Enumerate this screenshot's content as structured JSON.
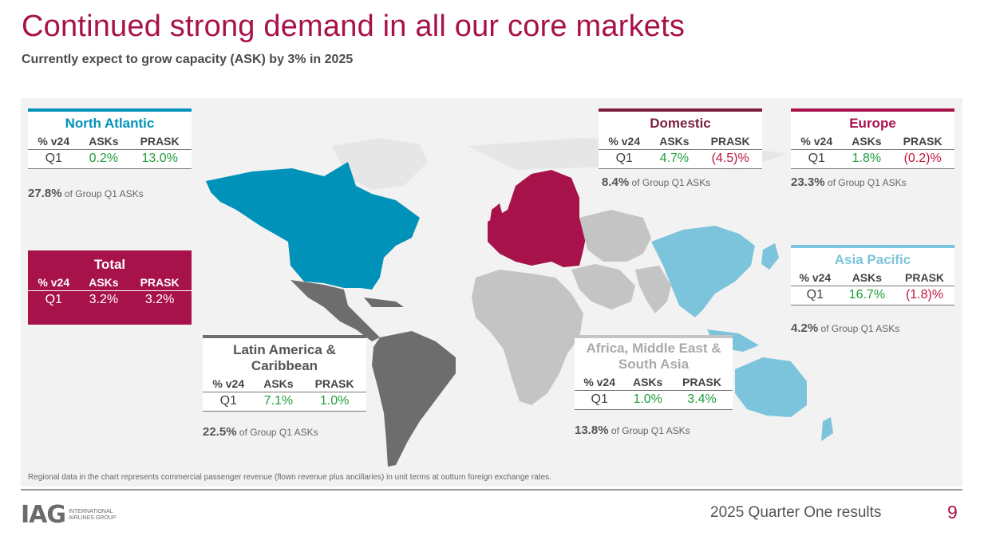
{
  "header": {
    "title": "Continued strong demand in all our core markets",
    "subtitle": "Currently expect to grow capacity (ASK) by 3% in 2025"
  },
  "colors": {
    "accent": "#a8124a",
    "north_atlantic": "#0092b8",
    "asia_pacific": "#7cc4dc",
    "latin_america": "#6d6d6d",
    "africa_me_sa": "#c4c4c4",
    "europe": "#a8124a",
    "positive": "#1f9e3a",
    "negative": "#c0143c"
  },
  "columns": {
    "period": "% v24",
    "asks": "ASKs",
    "prask": "PRASK"
  },
  "regions": {
    "north_atlantic": {
      "name": "North Atlantic",
      "period": "Q1",
      "asks": "0.2%",
      "prask": "13.0%",
      "share_value": "27.8%",
      "share_text": "of Group Q1 ASKs"
    },
    "total": {
      "name": "Total",
      "period": "Q1",
      "asks": "3.2%",
      "prask": "3.2%"
    },
    "latin_america": {
      "name": "Latin America & Caribbean",
      "period": "Q1",
      "asks": "7.1%",
      "prask": "1.0%",
      "share_value": "22.5%",
      "share_text": "of Group Q1 ASKs"
    },
    "domestic": {
      "name": "Domestic",
      "period": "Q1",
      "asks": "4.7%",
      "prask": "(4.5)%",
      "share_value": "8.4%",
      "share_text": "of Group Q1 ASKs"
    },
    "europe": {
      "name": "Europe",
      "period": "Q1",
      "asks": "1.8%",
      "prask": "(0.2)%",
      "share_value": "23.3%",
      "share_text": "of Group Q1 ASKs"
    },
    "asia_pacific": {
      "name": "Asia Pacific",
      "period": "Q1",
      "asks": "16.7%",
      "prask": "(1.8)%",
      "share_value": "4.2%",
      "share_text": "of Group Q1 ASKs"
    },
    "africa_me_sa": {
      "name": "Africa, Middle East & South Asia",
      "period": "Q1",
      "asks": "1.0%",
      "prask": "3.4%",
      "share_value": "13.8%",
      "share_text": "of Group Q1 ASKs"
    }
  },
  "footnote": "Regional data in the chart represents commercial passenger revenue (flown revenue plus ancillaries) in unit terms at outturn foreign exchange rates.",
  "footer": {
    "logo_mark": "IAG",
    "logo_text": "INTERNATIONAL AIRLINES GROUP",
    "results_label": "2025 Quarter One results",
    "page_number": "9"
  }
}
